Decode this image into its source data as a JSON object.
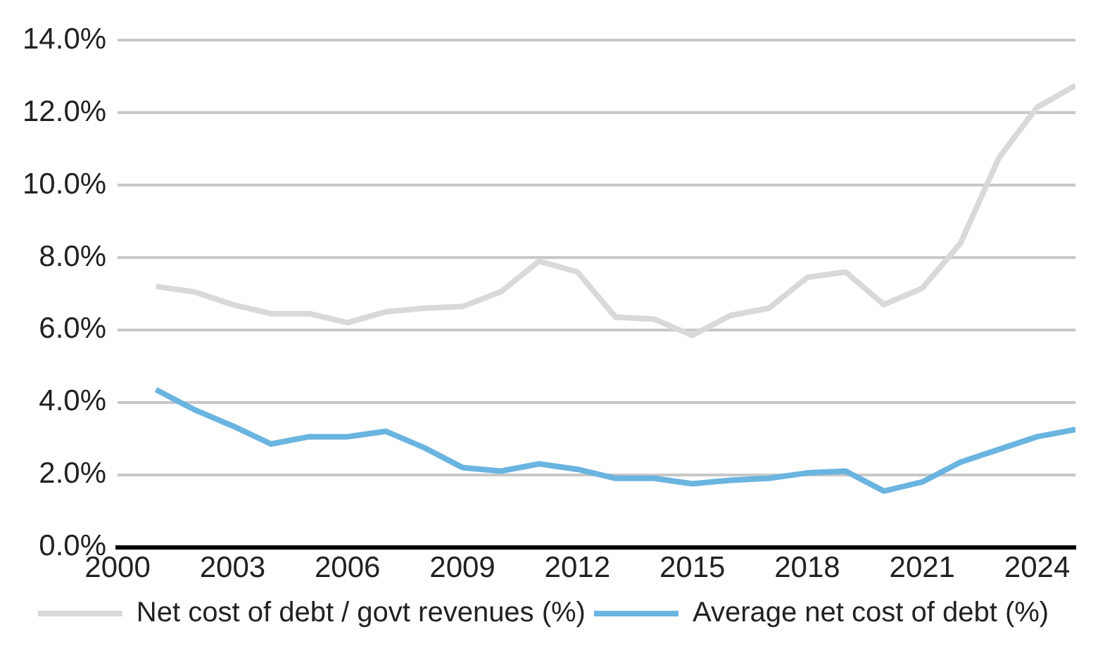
{
  "chart_data": {
    "type": "line",
    "x": [
      2001,
      2002,
      2003,
      2004,
      2005,
      2006,
      2007,
      2008,
      2009,
      2010,
      2011,
      2012,
      2013,
      2014,
      2015,
      2016,
      2017,
      2018,
      2019,
      2020,
      2021,
      2022,
      2023,
      2024,
      2025
    ],
    "series": [
      {
        "name": "Net cost of debt / govt revenues (%)",
        "color": "#d9d9d9",
        "values": [
          7.2,
          7.05,
          6.7,
          6.45,
          6.45,
          6.2,
          6.5,
          6.6,
          6.65,
          7.05,
          7.9,
          7.6,
          6.35,
          6.3,
          5.85,
          6.4,
          6.6,
          7.45,
          7.6,
          6.7,
          7.15,
          8.4,
          10.75,
          12.15,
          12.75
        ]
      },
      {
        "name": "Average net cost of debt (%)",
        "color": "#6ab4e0",
        "values": [
          4.35,
          3.8,
          3.35,
          2.85,
          3.05,
          3.05,
          3.2,
          2.75,
          2.2,
          2.1,
          2.3,
          2.15,
          1.9,
          1.9,
          1.75,
          1.85,
          1.9,
          2.05,
          2.1,
          1.55,
          1.8,
          2.35,
          2.7,
          3.05,
          3.25
        ]
      }
    ],
    "xlim": [
      2000,
      2025
    ],
    "xticks": [
      2000,
      2003,
      2006,
      2009,
      2012,
      2015,
      2018,
      2021,
      2024
    ],
    "ylim": [
      0,
      14
    ],
    "yticks": [
      {
        "value": 0,
        "label": "0.0%"
      },
      {
        "value": 2,
        "label": "2.0%"
      },
      {
        "value": 4,
        "label": "4.0%"
      },
      {
        "value": 6,
        "label": "6.0%"
      },
      {
        "value": 8,
        "label": "8.0%"
      },
      {
        "value": 10,
        "label": "10.0%"
      },
      {
        "value": 12,
        "label": "12.0%"
      },
      {
        "value": 14,
        "label": "14.0%"
      }
    ],
    "grid": "y",
    "legend": "bottom",
    "marker": "none",
    "line_style": "solid"
  }
}
